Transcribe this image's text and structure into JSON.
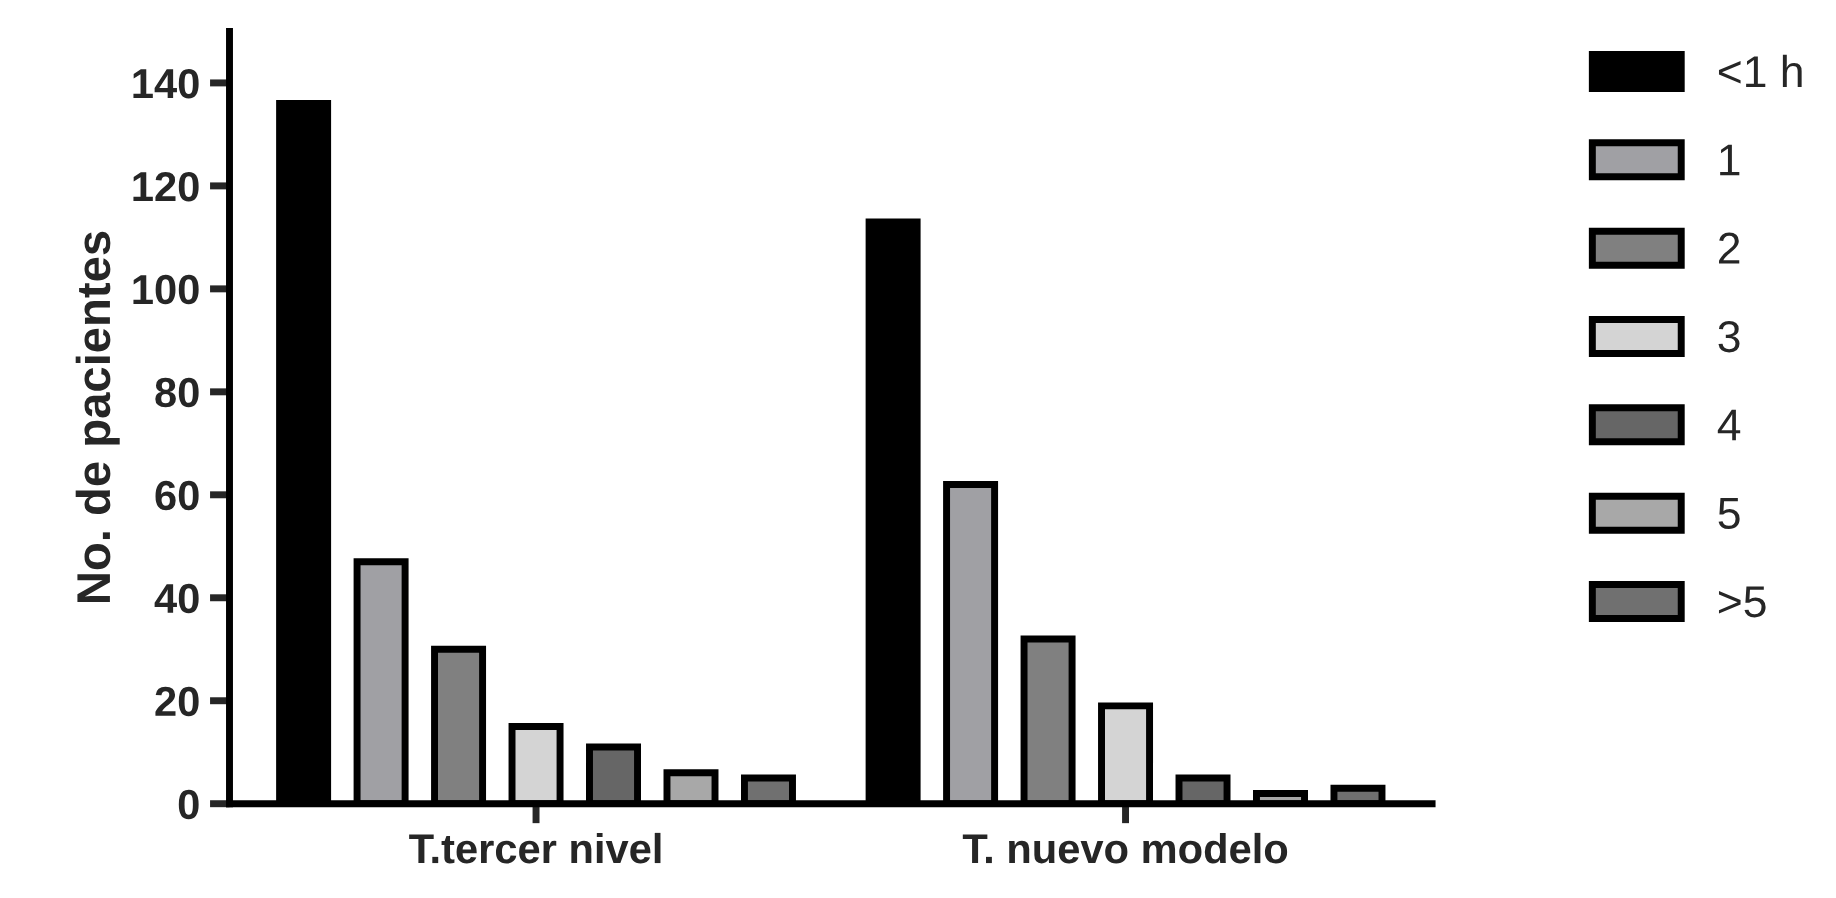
{
  "chart_data": {
    "type": "bar",
    "ylabel": "No. de pacientes",
    "categories": [
      "T.tercer nivel",
      "T. nuevo modelo"
    ],
    "series": [
      {
        "name": "<1 h",
        "color": "#000000",
        "values": [
          136,
          113
        ]
      },
      {
        "name": "1",
        "color": "#a0a0a4",
        "values": [
          47,
          62
        ]
      },
      {
        "name": "2",
        "color": "#808080",
        "values": [
          30,
          32
        ]
      },
      {
        "name": "3",
        "color": "#d4d4d4",
        "values": [
          15,
          19
        ]
      },
      {
        "name": "4",
        "color": "#666666",
        "values": [
          11,
          5
        ]
      },
      {
        "name": "5",
        "color": "#a8a8a8",
        "values": [
          6,
          2
        ]
      },
      {
        "name": ">5",
        "color": "#707070",
        "values": [
          5,
          3
        ]
      }
    ],
    "ylim": [
      0,
      150
    ],
    "yticks": [
      0,
      20,
      40,
      60,
      80,
      100,
      120,
      140
    ],
    "grid": false,
    "legend": "right"
  }
}
